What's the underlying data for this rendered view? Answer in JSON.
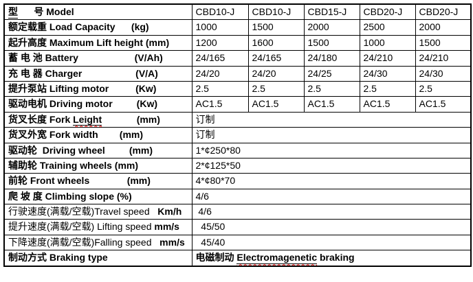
{
  "colors": {
    "text": "#000000",
    "border": "#000000",
    "background": "#ffffff",
    "highlight_value": "#ff0000",
    "spellcheck_underline": "#ff0000"
  },
  "table": {
    "column_count": 6,
    "value_column_models": [
      "CBD10-J",
      "CBD10-J",
      "CBD15-J",
      "CBD20-J",
      "CBD20-J"
    ],
    "rows": [
      {
        "name": "model",
        "label": [
          {
            "t": "型",
            "b": 1,
            "u": 1
          },
          {
            "t": "      ",
            "b": 1
          },
          {
            "t": "号 Model",
            "b": 1
          }
        ],
        "cells": [
          "CBD10-J",
          "CBD10-J",
          "CBD15-J",
          "CBD20-J",
          "CBD20-J"
        ]
      },
      {
        "name": "load-capacity",
        "label": [
          {
            "t": "额定载重 Load Capacity",
            "b": 1
          },
          {
            "t": "      (kg)",
            "b": 1
          }
        ],
        "cells": [
          "1000",
          "1500",
          "2000",
          "2500",
          "2000"
        ]
      },
      {
        "name": "max-lift-height",
        "label": [
          {
            "t": "起升高度 Maximum Lift height (mm)",
            "b": 1
          }
        ],
        "cells": [
          "1200",
          "1600",
          "1500",
          "1000",
          "1500"
        ]
      },
      {
        "name": "battery",
        "label": [
          {
            "t": "蓄 电 池 Battery",
            "b": 1
          },
          {
            "t": "                     (V/Ah)",
            "b": 1
          }
        ],
        "cells": [
          "24/165",
          "24/165",
          "24/180",
          "24/210",
          "24/210"
        ]
      },
      {
        "name": "charger",
        "label": [
          {
            "t": "充 电 器 Charger",
            "b": 1
          },
          {
            "t": "                    (V/A)",
            "b": 1
          }
        ],
        "cells": [
          "24/20",
          "24/20",
          "24/25",
          "24/30",
          "24/30"
        ]
      },
      {
        "name": "lifting-motor",
        "label": [
          {
            "t": "提升泵站 Lifting motor",
            "b": 1
          },
          {
            "t": "          (Kw)",
            "b": 1
          }
        ],
        "cells": [
          "2.5",
          "2.5",
          "2.5",
          "2.5",
          "2.5"
        ],
        "red": 1
      },
      {
        "name": "driving-motor",
        "label": [
          {
            "t": "驱动电机 Driving motor",
            "b": 1
          },
          {
            "t": "         (Kw)",
            "b": 1
          }
        ],
        "cells": [
          "AC1.5",
          "AC1.5",
          "AC1.5",
          "AC1.5",
          "AC1.5"
        ]
      },
      {
        "name": "fork-length",
        "label": [
          {
            "t": "货叉长度 Fork ",
            "b": 1
          },
          {
            "t": "Leight",
            "b": 1,
            "u": 1,
            "w": 1
          },
          {
            "t": "             (mm)",
            "b": 1
          }
        ],
        "merged": [
          {
            "t": "订制"
          }
        ]
      },
      {
        "name": "fork-width",
        "label": [
          {
            "t": "货叉外宽 Fork width",
            "b": 1
          },
          {
            "t": "        (mm)",
            "b": 1
          }
        ],
        "merged": [
          {
            "t": "订制"
          }
        ]
      },
      {
        "name": "driving-wheel",
        "label": [
          {
            "t": "驱动轮  Driving wheel",
            "b": 1
          },
          {
            "t": "         (mm)",
            "b": 1
          }
        ],
        "merged": [
          {
            "t": "1*¢250*80"
          }
        ]
      },
      {
        "name": "training-wheels",
        "label": [
          {
            "t": "辅助轮 Training wheels (mm)",
            "b": 1
          }
        ],
        "merged": [
          {
            "t": "2*¢125*50"
          }
        ]
      },
      {
        "name": "front-wheels",
        "label": [
          {
            "t": "前轮 Front wheels",
            "b": 1
          },
          {
            "t": "              (mm)",
            "b": 1
          }
        ],
        "merged": [
          {
            "t": "4*¢80*70"
          }
        ]
      },
      {
        "name": "climbing-slope",
        "label": [
          {
            "t": "爬 坡 度 Climbing slope (%)",
            "b": 1
          }
        ],
        "merged": [
          {
            "t": "4/6"
          }
        ]
      },
      {
        "name": "travel-speed",
        "label": [
          {
            "t": "行驶速度(满载/空载)Travel speed"
          },
          {
            "t": "   "
          },
          {
            "t": "Km/h",
            "b": 1
          }
        ],
        "merged": [
          {
            "t": " 4/6"
          }
        ]
      },
      {
        "name": "lifting-speed",
        "label": [
          {
            "t": "提升速度(满载/空载) Lifting speed "
          },
          {
            "t": "mm/s",
            "b": 1
          }
        ],
        "merged": [
          {
            "t": "  45/50"
          }
        ]
      },
      {
        "name": "falling-speed",
        "label": [
          {
            "t": "下降速度(满载/空载)Falling speed"
          },
          {
            "t": "   "
          },
          {
            "t": "mm/s",
            "b": 1
          }
        ],
        "merged": [
          {
            "t": "  45/40"
          }
        ]
      },
      {
        "name": "braking-type",
        "label": [
          {
            "t": "制动方式 Braking type",
            "b": 1
          }
        ],
        "merged": [
          {
            "t": "电磁制动 ",
            "b": 1
          },
          {
            "t": "Electromagenetic",
            "b": 1,
            "u": 1,
            "w": 1
          },
          {
            "t": " braking",
            "b": 1
          }
        ]
      }
    ]
  }
}
